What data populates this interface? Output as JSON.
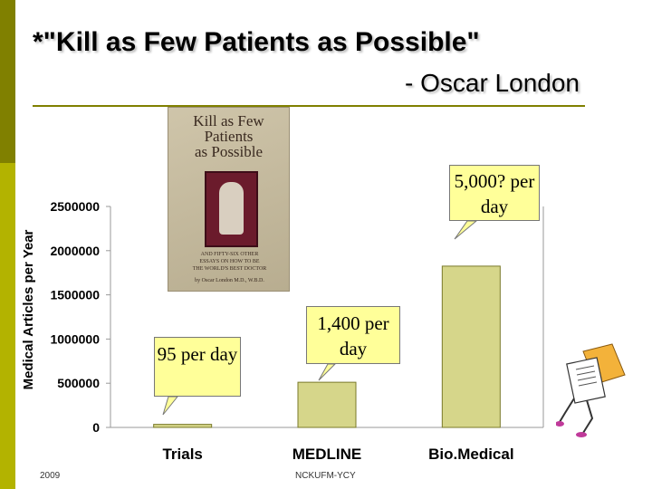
{
  "slide": {
    "title": "*\"Kill as Few Patients as Possible\"",
    "subtitle": "- Oscar London",
    "footer_left": "2009",
    "footer_center": "NCKUFM-YCY"
  },
  "book_cover": {
    "title_line1": "Kill as Few",
    "title_line2": "Patients",
    "title_line3": "as Possible",
    "subtitle_line1": "AND FIFTY-SIX OTHER",
    "subtitle_line2": "ESSAYS ON HOW TO BE",
    "subtitle_line3": "THE WORLD'S BEST DOCTOR",
    "author": "by Oscar London M.D., W.B.D."
  },
  "callouts": {
    "trials": "95 per day",
    "medline": "1,400 per day",
    "biomedical": "5,000? per day"
  },
  "chart_data": {
    "type": "bar",
    "categories": [
      "Trials",
      "MEDLINE",
      "Bio.Medical"
    ],
    "values": [
      34675,
      511000,
      1825000
    ],
    "ylabel": "Medical Articles per Year",
    "ylim": [
      0,
      2500000
    ],
    "yticks": [
      "0",
      "500000",
      "1000000",
      "1500000",
      "2000000",
      "2500000"
    ],
    "ytick_values": [
      0,
      500000,
      1000000,
      1500000,
      2000000,
      2500000
    ],
    "bar_color": "#d6d68a",
    "bar_border": "#7a7a2a",
    "grid": false
  },
  "colors": {
    "accent_dark": "#808000",
    "accent_light": "#b3b300",
    "callout_fill": "#ffff99"
  }
}
